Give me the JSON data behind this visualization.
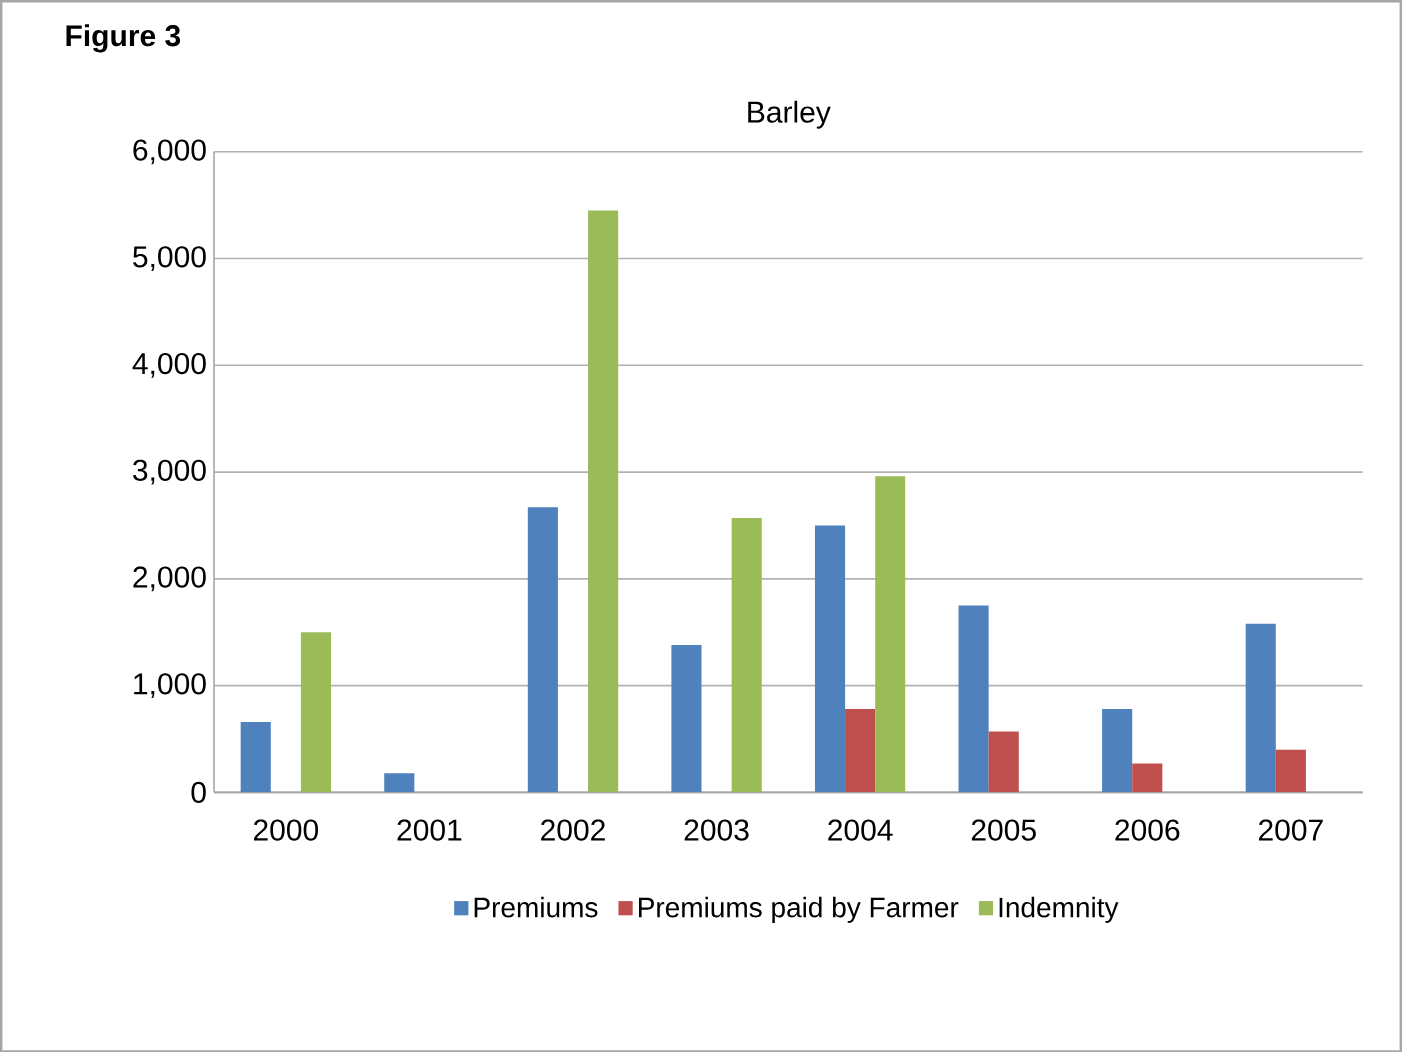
{
  "chart_data": {
    "type": "bar",
    "title": "Barley",
    "annotations": [
      "Figure 3"
    ],
    "categories": [
      "2000",
      "2001",
      "2002",
      "2003",
      "2004",
      "2005",
      "2006",
      "2007"
    ],
    "series": [
      {
        "name": "Premiums",
        "color": "#4f81bd",
        "values": [
          660,
          180,
          2670,
          1380,
          2500,
          1750,
          780,
          1580
        ]
      },
      {
        "name": "Premiums paid by Farmer",
        "color": "#c0504d",
        "values": [
          null,
          null,
          null,
          null,
          780,
          570,
          270,
          400
        ]
      },
      {
        "name": "Indemnity",
        "color": "#9bbb59",
        "values": [
          1500,
          null,
          5450,
          2570,
          2960,
          null,
          null,
          null
        ]
      }
    ],
    "ylim": [
      0,
      6000
    ],
    "yticks": [
      {
        "value": 0,
        "label": "0"
      },
      {
        "value": 1000,
        "label": "1,000"
      },
      {
        "value": 2000,
        "label": "2,000"
      },
      {
        "value": 3000,
        "label": "3,000"
      },
      {
        "value": 4000,
        "label": "4,000"
      },
      {
        "value": 5000,
        "label": "5,000"
      },
      {
        "value": 6000,
        "label": "6,000"
      }
    ],
    "grid": "y",
    "legend": "bottom"
  }
}
